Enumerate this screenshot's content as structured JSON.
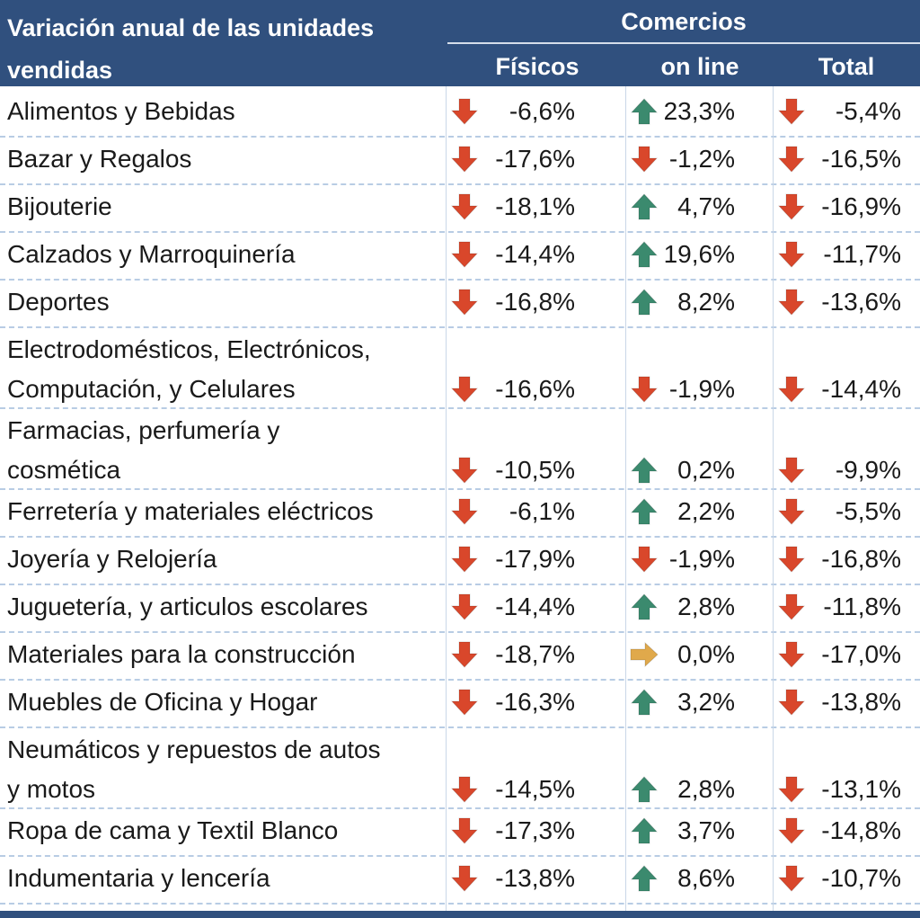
{
  "header": {
    "title": "Variación anual de las unidades\nvendidas",
    "title_line1": "Variación anual de las unidades",
    "title_line2": "vendidas",
    "group": "Comercios",
    "columns": [
      "Físicos",
      "on line",
      "Total"
    ]
  },
  "colors": {
    "header_bg": "#30507e",
    "down": "#d9472b",
    "up": "#3b8a6e",
    "flat": "#e0a94b"
  },
  "rows": [
    {
      "label": [
        "Alimentos y Bebidas"
      ],
      "fisicos": "-6,6%",
      "fisicos_dir": "down",
      "online": "23,3%",
      "online_dir": "up",
      "total": "-5,4%",
      "total_dir": "down"
    },
    {
      "label": [
        "Bazar y Regalos"
      ],
      "fisicos": "-17,6%",
      "fisicos_dir": "down",
      "online": "-1,2%",
      "online_dir": "down",
      "total": "-16,5%",
      "total_dir": "down"
    },
    {
      "label": [
        "Bijouterie"
      ],
      "fisicos": "-18,1%",
      "fisicos_dir": "down",
      "online": "4,7%",
      "online_dir": "up",
      "total": "-16,9%",
      "total_dir": "down"
    },
    {
      "label": [
        "Calzados y Marroquinería"
      ],
      "fisicos": "-14,4%",
      "fisicos_dir": "down",
      "online": "19,6%",
      "online_dir": "up",
      "total": "-11,7%",
      "total_dir": "down"
    },
    {
      "label": [
        "Deportes"
      ],
      "fisicos": "-16,8%",
      "fisicos_dir": "down",
      "online": "8,2%",
      "online_dir": "up",
      "total": "-13,6%",
      "total_dir": "down"
    },
    {
      "label": [
        "Electrodomésticos, Electrónicos,",
        "Computación, y Celulares"
      ],
      "fisicos": "-16,6%",
      "fisicos_dir": "down",
      "online": "-1,9%",
      "online_dir": "down",
      "total": "-14,4%",
      "total_dir": "down"
    },
    {
      "label": [
        "Farmacias, perfumería y",
        "cosmética"
      ],
      "fisicos": "-10,5%",
      "fisicos_dir": "down",
      "online": "0,2%",
      "online_dir": "up",
      "total": "-9,9%",
      "total_dir": "down"
    },
    {
      "label": [
        "Ferretería y materiales eléctricos"
      ],
      "fisicos": "-6,1%",
      "fisicos_dir": "down",
      "online": "2,2%",
      "online_dir": "up",
      "total": "-5,5%",
      "total_dir": "down"
    },
    {
      "label": [
        "Joyería y Relojería"
      ],
      "fisicos": "-17,9%",
      "fisicos_dir": "down",
      "online": "-1,9%",
      "online_dir": "down",
      "total": "-16,8%",
      "total_dir": "down"
    },
    {
      "label": [
        "Juguetería, y articulos escolares"
      ],
      "fisicos": "-14,4%",
      "fisicos_dir": "down",
      "online": "2,8%",
      "online_dir": "up",
      "total": "-11,8%",
      "total_dir": "down"
    },
    {
      "label": [
        "Materiales para la construcción"
      ],
      "fisicos": "-18,7%",
      "fisicos_dir": "down",
      "online": "0,0%",
      "online_dir": "flat",
      "total": "-17,0%",
      "total_dir": "down"
    },
    {
      "label": [
        "Muebles de Oficina y Hogar"
      ],
      "fisicos": "-16,3%",
      "fisicos_dir": "down",
      "online": "3,2%",
      "online_dir": "up",
      "total": "-13,8%",
      "total_dir": "down"
    },
    {
      "label": [
        "Neumáticos y repuestos de autos",
        "y motos"
      ],
      "fisicos": "-14,5%",
      "fisicos_dir": "down",
      "online": "2,8%",
      "online_dir": "up",
      "total": "-13,1%",
      "total_dir": "down"
    },
    {
      "label": [
        "Ropa de cama y Textil Blanco"
      ],
      "fisicos": "-17,3%",
      "fisicos_dir": "down",
      "online": "3,7%",
      "online_dir": "up",
      "total": "-14,8%",
      "total_dir": "down"
    },
    {
      "label": [
        "Indumentaria y lencería"
      ],
      "fisicos": "-13,8%",
      "fisicos_dir": "down",
      "online": "8,6%",
      "online_dir": "up",
      "total": "-10,7%",
      "total_dir": "down"
    }
  ]
}
